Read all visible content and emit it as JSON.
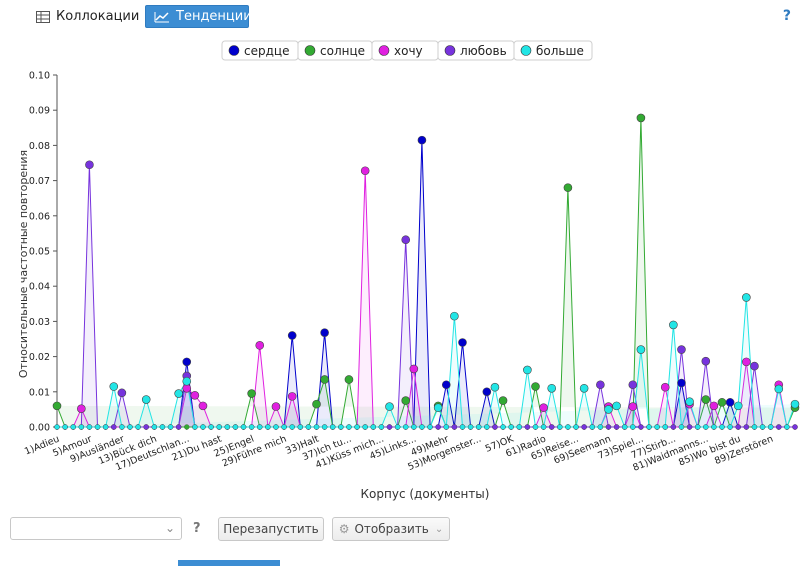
{
  "tabs": [
    {
      "label": "Коллокации",
      "icon": "table-icon",
      "active": false
    },
    {
      "label": "Тенденции",
      "icon": "line-chart-icon",
      "active": true
    }
  ],
  "help_label": "?",
  "controls": {
    "select_value": "",
    "help_label": "?",
    "restart_label": "Перезапустить",
    "display_label": "Отобразить"
  },
  "colors": {
    "accent": "#3c8dd3",
    "сердце": "#0000cc",
    "солнце": "#33aa33",
    "хочу": "#e020e0",
    "любовь": "#7733dd",
    "больше": "#22e5e5"
  },
  "chart_data": {
    "type": "line",
    "title": "",
    "xlabel": "Корпус (документы)",
    "ylabel": "Относительные частотные повторения",
    "ylim": [
      0,
      0.1
    ],
    "yticks": [
      "0.00",
      "0.01",
      "0.02",
      "0.03",
      "0.04",
      "0.05",
      "0.06",
      "0.07",
      "0.08",
      "0.09",
      "0.10"
    ],
    "grid": false,
    "legend_position": "top",
    "doc_count": 92,
    "x_tick_labels": [
      {
        "doc": 1,
        "label": "1)Adieu"
      },
      {
        "doc": 5,
        "label": "5)Amour"
      },
      {
        "doc": 9,
        "label": "9)Ausländer"
      },
      {
        "doc": 13,
        "label": "13)Bück dich"
      },
      {
        "doc": 17,
        "label": "17)Deutschlan..."
      },
      {
        "doc": 21,
        "label": "21)Du hast"
      },
      {
        "doc": 25,
        "label": "25)Engel"
      },
      {
        "doc": 29,
        "label": "29)Führe mich"
      },
      {
        "doc": 33,
        "label": "33)Halt"
      },
      {
        "doc": 37,
        "label": "37)Ich tu..."
      },
      {
        "doc": 41,
        "label": "41)Küss mich..."
      },
      {
        "doc": 45,
        "label": "45)Links..."
      },
      {
        "doc": 49,
        "label": "49)Mehr"
      },
      {
        "doc": 53,
        "label": "53)Morgenster..."
      },
      {
        "doc": 57,
        "label": "57)OK"
      },
      {
        "doc": 61,
        "label": "61)Radio"
      },
      {
        "doc": 65,
        "label": "65)Reise..."
      },
      {
        "doc": 69,
        "label": "69)Seemann"
      },
      {
        "doc": 73,
        "label": "73)Spiel..."
      },
      {
        "doc": 77,
        "label": "77)Stirb..."
      },
      {
        "doc": 81,
        "label": "81)Waidmanns..."
      },
      {
        "doc": 85,
        "label": "85)Wo bist du"
      },
      {
        "doc": 89,
        "label": "89)Zerstören"
      }
    ],
    "series": [
      {
        "name": "сердце",
        "points": [
          [
            17,
            0.0185
          ],
          [
            30,
            0.026
          ],
          [
            34,
            0.0268
          ],
          [
            46,
            0.0815
          ],
          [
            49,
            0.012
          ],
          [
            51,
            0.024
          ],
          [
            54,
            0.01
          ],
          [
            78,
            0.0125
          ],
          [
            84,
            0.007
          ]
        ]
      },
      {
        "name": "солнце",
        "points": [
          [
            1,
            0.006
          ],
          [
            25,
            0.0095
          ],
          [
            33,
            0.0065
          ],
          [
            34,
            0.0135
          ],
          [
            37,
            0.0135
          ],
          [
            44,
            0.0075
          ],
          [
            48,
            0.006
          ],
          [
            56,
            0.0075
          ],
          [
            60,
            0.0115
          ],
          [
            64,
            0.068
          ],
          [
            73,
            0.0878
          ],
          [
            81,
            0.0078
          ],
          [
            83,
            0.007
          ],
          [
            92,
            0.0055
          ]
        ]
      },
      {
        "name": "хочу",
        "points": [
          [
            4,
            0.0052
          ],
          [
            17,
            0.011
          ],
          [
            18,
            0.009
          ],
          [
            19,
            0.006
          ],
          [
            26,
            0.0232
          ],
          [
            28,
            0.0058
          ],
          [
            30,
            0.0087
          ],
          [
            39,
            0.0728
          ],
          [
            45,
            0.0165
          ],
          [
            61,
            0.0055
          ],
          [
            69,
            0.0058
          ],
          [
            72,
            0.0058
          ],
          [
            76,
            0.0113
          ],
          [
            79,
            0.0065
          ],
          [
            82,
            0.006
          ],
          [
            86,
            0.0185
          ],
          [
            90,
            0.012
          ]
        ]
      },
      {
        "name": "любовь",
        "points": [
          [
            5,
            0.0745
          ],
          [
            9,
            0.0097
          ],
          [
            17,
            0.0145
          ],
          [
            44,
            0.0532
          ],
          [
            68,
            0.012
          ],
          [
            72,
            0.012
          ],
          [
            78,
            0.022
          ],
          [
            81,
            0.0187
          ],
          [
            87,
            0.0173
          ]
        ]
      },
      {
        "name": "больше",
        "points": [
          [
            8,
            0.0115
          ],
          [
            12,
            0.0078
          ],
          [
            16,
            0.0095
          ],
          [
            17,
            0.013
          ],
          [
            42,
            0.0058
          ],
          [
            48,
            0.0055
          ],
          [
            50,
            0.0315
          ],
          [
            55,
            0.0113
          ],
          [
            59,
            0.0162
          ],
          [
            62,
            0.011
          ],
          [
            66,
            0.011
          ],
          [
            69,
            0.005
          ],
          [
            70,
            0.006
          ],
          [
            73,
            0.022
          ],
          [
            77,
            0.029
          ],
          [
            79,
            0.0072
          ],
          [
            85,
            0.006
          ],
          [
            86,
            0.0368
          ],
          [
            90,
            0.0108
          ],
          [
            92,
            0.0065
          ]
        ]
      }
    ]
  }
}
